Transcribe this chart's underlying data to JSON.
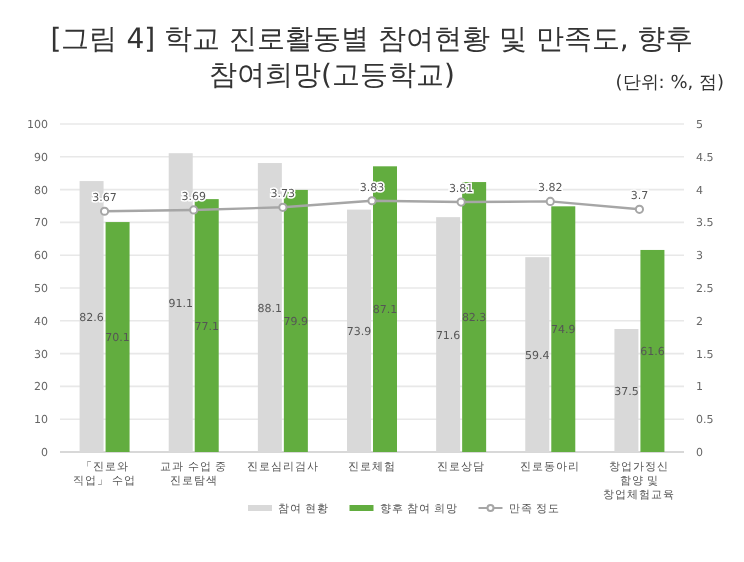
{
  "chart_data": {
    "type": "bar",
    "title": "[그림 4] 학교 진로활동별 참여현황 및 만족도, 향후 참여희망(고등학교)",
    "annotations": [
      "(단위: %, 점)"
    ],
    "categories": [
      "「진로와 직업」 수업",
      "교과 수업 중 진로탐색",
      "진로심리검사",
      "진로체험",
      "진로상담",
      "진로동아리",
      "창업가정신 함양 및 창업체험교육"
    ],
    "series": [
      {
        "name": "참여 현황",
        "color": "#d9d9d9",
        "values": [
          82.6,
          91.1,
          88.1,
          73.9,
          71.6,
          59.4,
          37.5
        ]
      },
      {
        "name": "향후 참여 희망",
        "color": "#62ad3f",
        "values": [
          70.1,
          77.1,
          79.9,
          87.1,
          82.3,
          74.9,
          61.6
        ]
      },
      {
        "name": "만족 정도",
        "type": "line",
        "axis": "y2",
        "color": "#a6a6a6",
        "marker": "circle",
        "values": [
          3.67,
          3.69,
          3.73,
          3.83,
          3.81,
          3.82,
          3.7
        ]
      }
    ],
    "ylim": [
      0,
      100
    ],
    "yticks": [
      0,
      10,
      20,
      30,
      40,
      50,
      60,
      70,
      80,
      90,
      100
    ],
    "y2lim": [
      0,
      5
    ],
    "y2ticks": [
      0,
      0.5,
      1,
      1.5,
      2,
      2.5,
      3,
      3.5,
      4,
      4.5,
      5
    ],
    "grid": "y",
    "legend": "bottom",
    "data_labels": true
  }
}
